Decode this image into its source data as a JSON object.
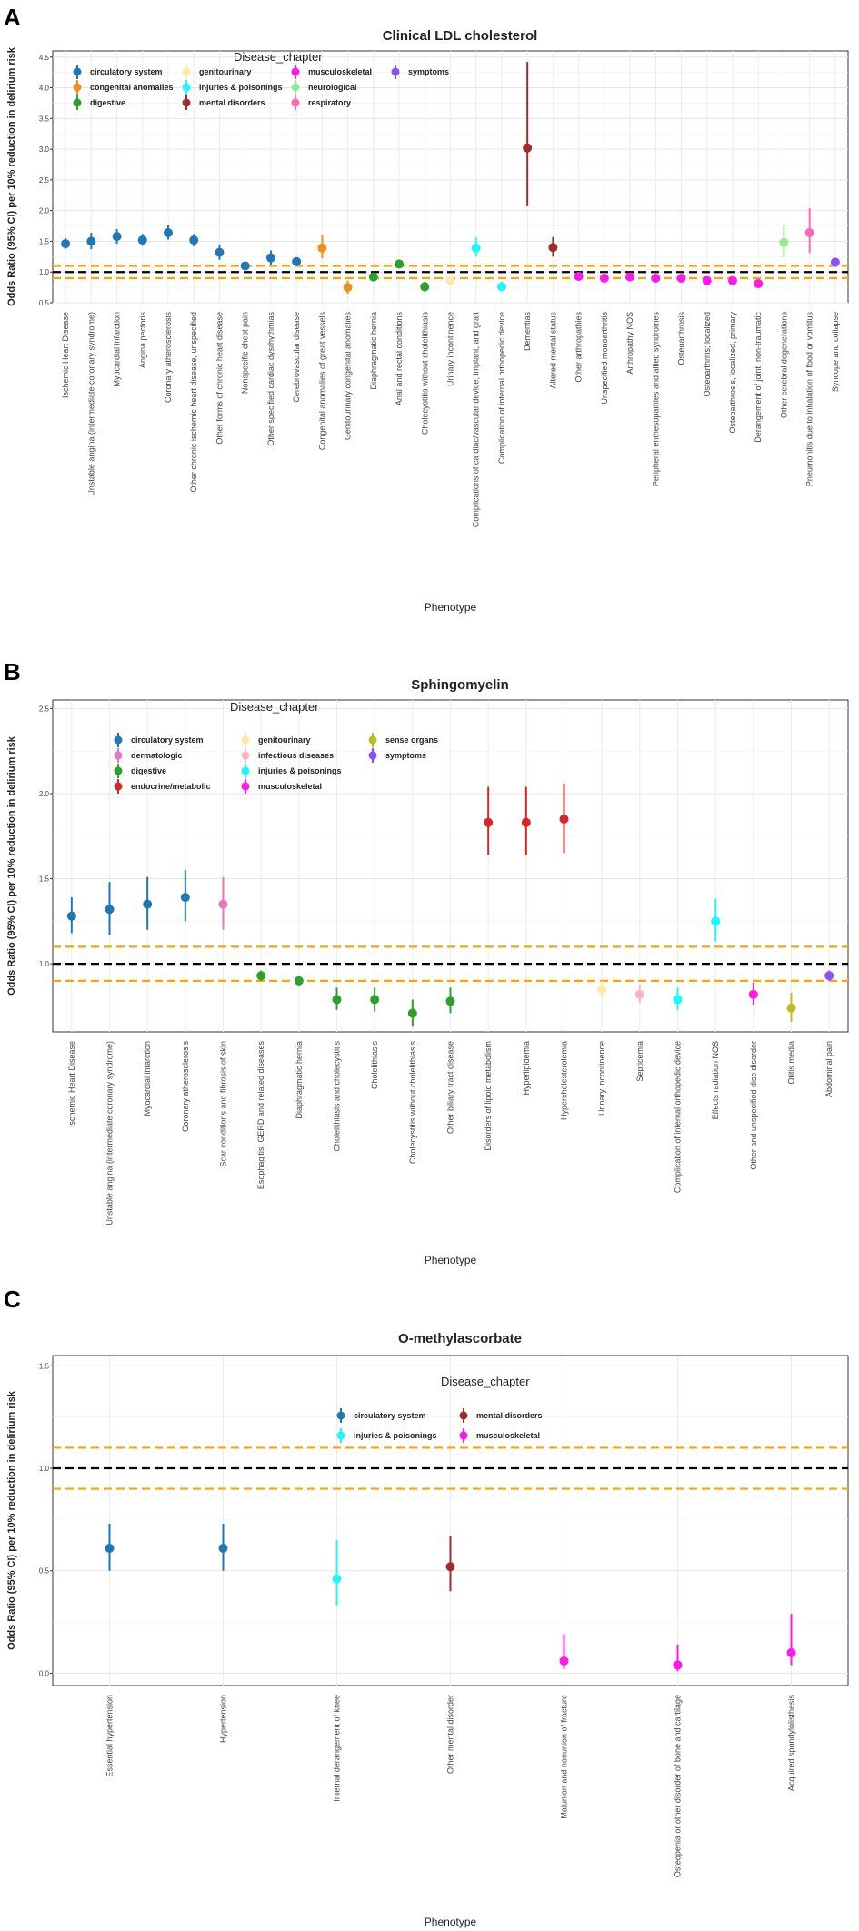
{
  "colors": {
    "circulatory system": "#1f77b4",
    "congenital anomalies": "#f28e1c",
    "digestive": "#2ca02c",
    "genitourinary": "#fdeaa8",
    "injuries & poisonings": "#1ff7ff",
    "mental disorders": "#a52a2a",
    "musculoskeletal": "#ff19e9",
    "neurological": "#90ee90",
    "respiratory": "#ff69b4",
    "symptoms": "#8a4fff",
    "dermatologic": "#e377c2",
    "endocrine/metabolic": "#d62728",
    "infectious diseases": "#ffb6c1",
    "sense organs": "#bcbd22",
    "reference_line": "#000000",
    "threshold_line": "#ffa500"
  },
  "chart_data": [
    {
      "panel_letter": "A",
      "type": "scatter",
      "title": "Clinical LDL cholesterol",
      "xlabel": "Phenotype",
      "ylabel": "Odds Ratio (95% CI) per 10% reduction in delirium risk",
      "ylim": [
        0.5,
        4.6
      ],
      "yticks": [
        0.5,
        1.0,
        1.5,
        2.0,
        2.5,
        3.0,
        3.5,
        4.0,
        4.5
      ],
      "ytick_labels": [
        "0.5",
        "1.0",
        "1.5",
        "2.0",
        "2.5",
        "3.0",
        "3.5",
        "4.0",
        "4.5"
      ],
      "ref_lines": [
        1.0
      ],
      "threshold_lines": [
        0.9,
        1.1
      ],
      "legend": {
        "title": "Disease_chapter",
        "placement": "top-left",
        "columns": [
          [
            "circulatory system",
            "congenital anomalies",
            "digestive"
          ],
          [
            "genitourinary",
            "injuries & poisonings",
            "mental disorders"
          ],
          [
            "musculoskeletal",
            "neurological",
            "respiratory"
          ],
          [
            "symptoms"
          ]
        ]
      },
      "points": [
        {
          "label": "Ischemic Heart Disease",
          "chapter": "circulatory system",
          "or": 1.46,
          "lo": 1.38,
          "hi": 1.55
        },
        {
          "label": "Unstable angina (intermediate coronary syndrome)",
          "chapter": "circulatory system",
          "or": 1.5,
          "lo": 1.37,
          "hi": 1.64
        },
        {
          "label": "Myocardial infarction",
          "chapter": "circulatory system",
          "or": 1.58,
          "lo": 1.46,
          "hi": 1.7
        },
        {
          "label": "Angina pectoris",
          "chapter": "circulatory system",
          "or": 1.52,
          "lo": 1.43,
          "hi": 1.62
        },
        {
          "label": "Coronary atherosclerosis",
          "chapter": "circulatory system",
          "or": 1.64,
          "lo": 1.53,
          "hi": 1.76
        },
        {
          "label": "Other chronic ischemic heart disease, unspecified",
          "chapter": "circulatory system",
          "or": 1.52,
          "lo": 1.42,
          "hi": 1.62
        },
        {
          "label": "Other forms of chronic heart disease",
          "chapter": "circulatory system",
          "or": 1.32,
          "lo": 1.2,
          "hi": 1.45
        },
        {
          "label": "Nonspecific chest pain",
          "chapter": "circulatory system",
          "or": 1.1,
          "lo": 1.05,
          "hi": 1.16
        },
        {
          "label": "Other specified cardiac dysrhythmias",
          "chapter": "circulatory system",
          "or": 1.23,
          "lo": 1.12,
          "hi": 1.35
        },
        {
          "label": "Cerebrovascular disease",
          "chapter": "circulatory system",
          "or": 1.17,
          "lo": 1.1,
          "hi": 1.24
        },
        {
          "label": "Congenital anomalies of great vessels",
          "chapter": "congenital anomalies",
          "or": 1.39,
          "lo": 1.22,
          "hi": 1.6
        },
        {
          "label": "Genitourinary congenital anomalies",
          "chapter": "congenital anomalies",
          "or": 0.75,
          "lo": 0.65,
          "hi": 0.86
        },
        {
          "label": "Diaphragmatic hernia",
          "chapter": "digestive",
          "or": 0.92,
          "lo": 0.88,
          "hi": 0.97
        },
        {
          "label": "Anal and rectal conditions",
          "chapter": "digestive",
          "or": 1.13,
          "lo": 1.08,
          "hi": 1.18
        },
        {
          "label": "Cholecystitis without cholelithiasis",
          "chapter": "digestive",
          "or": 0.76,
          "lo": 0.68,
          "hi": 0.84
        },
        {
          "label": "Urinary incontinence",
          "chapter": "genitourinary",
          "or": 0.86,
          "lo": 0.8,
          "hi": 0.93
        },
        {
          "label": "Complications of cardiac/vascular device, implant, and graft",
          "chapter": "injuries & poisonings",
          "or": 1.39,
          "lo": 1.25,
          "hi": 1.56
        },
        {
          "label": "Complication of internal orthopedic device",
          "chapter": "injuries & poisonings",
          "or": 0.76,
          "lo": 0.69,
          "hi": 0.84
        },
        {
          "label": "Dementias",
          "chapter": "mental disorders",
          "or": 3.02,
          "lo": 2.07,
          "hi": 4.42
        },
        {
          "label": "Altered mental status",
          "chapter": "mental disorders",
          "or": 1.4,
          "lo": 1.25,
          "hi": 1.57
        },
        {
          "label": "Other arthropathies",
          "chapter": "musculoskeletal",
          "or": 0.93,
          "lo": 0.89,
          "hi": 0.97
        },
        {
          "label": "Unspecified monoarthritis",
          "chapter": "musculoskeletal",
          "or": 0.9,
          "lo": 0.85,
          "hi": 0.95
        },
        {
          "label": "Arthropathy NOS",
          "chapter": "musculoskeletal",
          "or": 0.92,
          "lo": 0.88,
          "hi": 0.96
        },
        {
          "label": "Peripheral enthesopathies and allied syndromes",
          "chapter": "musculoskeletal",
          "or": 0.9,
          "lo": 0.86,
          "hi": 0.94
        },
        {
          "label": "Osteoarthrosis",
          "chapter": "musculoskeletal",
          "or": 0.9,
          "lo": 0.87,
          "hi": 0.94
        },
        {
          "label": "Osteoarthritis; localized",
          "chapter": "musculoskeletal",
          "or": 0.86,
          "lo": 0.82,
          "hi": 0.91
        },
        {
          "label": "Osteoarthrosis, localized, primary",
          "chapter": "musculoskeletal",
          "or": 0.86,
          "lo": 0.81,
          "hi": 0.91
        },
        {
          "label": "Derangement of joint, non-traumatic",
          "chapter": "musculoskeletal",
          "or": 0.81,
          "lo": 0.75,
          "hi": 0.88
        },
        {
          "label": "Other cerebral degenerations",
          "chapter": "neurological",
          "or": 1.48,
          "lo": 1.24,
          "hi": 1.77
        },
        {
          "label": "Pneumonitis due to inhalation of food or vomitus",
          "chapter": "respiratory",
          "or": 1.64,
          "lo": 1.31,
          "hi": 2.04
        },
        {
          "label": "Syncope and collapse",
          "chapter": "symptoms",
          "or": 1.16,
          "lo": 1.1,
          "hi": 1.21
        }
      ]
    },
    {
      "panel_letter": "B",
      "type": "scatter",
      "title": "Sphingomyelin",
      "xlabel": "Phenotype",
      "ylabel": "Odds Ratio (95% CI) per 10% reduction in delirium risk",
      "ylim": [
        0.6,
        2.55
      ],
      "yticks": [
        1.0,
        1.5,
        2.0,
        2.5
      ],
      "ytick_labels": [
        "1.0",
        "1.5",
        "2.0",
        "2.5"
      ],
      "ref_lines": [
        1.0
      ],
      "threshold_lines": [
        0.9,
        1.1
      ],
      "legend": {
        "title": "Disease_chapter",
        "placement": "top-left",
        "columns": [
          [
            "circulatory system",
            "dermatologic",
            "digestive",
            "endocrine/metabolic"
          ],
          [
            "genitourinary",
            "infectious diseases",
            "injuries & poisonings",
            "musculoskeletal"
          ],
          [
            "sense organs",
            "symptoms"
          ]
        ]
      },
      "points": [
        {
          "label": "Ischemic Heart Disease",
          "chapter": "circulatory system",
          "or": 1.28,
          "lo": 1.18,
          "hi": 1.39
        },
        {
          "label": "Unstable angina (intermediate coronary syndrome)",
          "chapter": "circulatory system",
          "or": 1.32,
          "lo": 1.17,
          "hi": 1.48
        },
        {
          "label": "Myocardial infarction",
          "chapter": "circulatory system",
          "or": 1.35,
          "lo": 1.2,
          "hi": 1.51
        },
        {
          "label": "Coronary atherosclerosis",
          "chapter": "circulatory system",
          "or": 1.39,
          "lo": 1.25,
          "hi": 1.55
        },
        {
          "label": "Scar conditions and fibrosis of skin",
          "chapter": "dermatologic",
          "or": 1.35,
          "lo": 1.2,
          "hi": 1.51
        },
        {
          "label": "Esophagitis, GERD and related diseases",
          "chapter": "digestive",
          "or": 0.93,
          "lo": 0.9,
          "hi": 0.96
        },
        {
          "label": "Diaphragmatic hernia",
          "chapter": "digestive",
          "or": 0.9,
          "lo": 0.87,
          "hi": 0.93
        },
        {
          "label": "Cholelithiasis and cholecystitis",
          "chapter": "digestive",
          "or": 0.79,
          "lo": 0.73,
          "hi": 0.86
        },
        {
          "label": "Cholelithiasis",
          "chapter": "digestive",
          "or": 0.79,
          "lo": 0.72,
          "hi": 0.86
        },
        {
          "label": "Cholecystitis without cholelithiasis",
          "chapter": "digestive",
          "or": 0.71,
          "lo": 0.63,
          "hi": 0.79
        },
        {
          "label": "Other biliary tract disease",
          "chapter": "digestive",
          "or": 0.78,
          "lo": 0.71,
          "hi": 0.86
        },
        {
          "label": "Disorders of lipoid metabolism",
          "chapter": "endocrine/metabolic",
          "or": 1.83,
          "lo": 1.64,
          "hi": 2.04
        },
        {
          "label": "Hyperlipidemia",
          "chapter": "endocrine/metabolic",
          "or": 1.83,
          "lo": 1.64,
          "hi": 2.04
        },
        {
          "label": "Hypercholesterolemia",
          "chapter": "endocrine/metabolic",
          "or": 1.85,
          "lo": 1.65,
          "hi": 2.06
        },
        {
          "label": "Urinary incontinence",
          "chapter": "genitourinary",
          "or": 0.85,
          "lo": 0.8,
          "hi": 0.9
        },
        {
          "label": "Septicemia",
          "chapter": "infectious diseases",
          "or": 0.82,
          "lo": 0.77,
          "hi": 0.88
        },
        {
          "label": "Complication of internal orthopedic device",
          "chapter": "injuries & poisonings",
          "or": 0.79,
          "lo": 0.73,
          "hi": 0.86
        },
        {
          "label": "Effects radiation NOS",
          "chapter": "injuries & poisonings",
          "or": 1.25,
          "lo": 1.13,
          "hi": 1.38
        },
        {
          "label": "Other and unspecified disc disorder",
          "chapter": "musculoskeletal",
          "or": 0.82,
          "lo": 0.76,
          "hi": 0.89
        },
        {
          "label": "Otitis media",
          "chapter": "sense organs",
          "or": 0.74,
          "lo": 0.66,
          "hi": 0.83
        },
        {
          "label": "Abdominal pain",
          "chapter": "symptoms",
          "or": 0.93,
          "lo": 0.9,
          "hi": 0.96
        }
      ]
    },
    {
      "panel_letter": "C",
      "type": "scatter",
      "title": "O-methylascorbate",
      "xlabel": "Phenotype",
      "ylabel": "Odds Ratio (95% CI) per 10% reduction in delirium risk",
      "ylim": [
        -0.06,
        1.55
      ],
      "yticks": [
        0.0,
        0.5,
        1.0,
        1.5
      ],
      "ytick_labels": [
        "0.0",
        "0.5",
        "1.0",
        "1.5"
      ],
      "ref_lines": [
        1.0
      ],
      "threshold_lines": [
        0.9,
        1.1
      ],
      "legend": {
        "title": "Disease_chapter",
        "placement": "top-center",
        "columns": [
          [
            "circulatory system",
            "injuries & poisonings"
          ],
          [
            "mental disorders",
            "musculoskeletal"
          ]
        ]
      },
      "points": [
        {
          "label": "Essential hypertension",
          "chapter": "circulatory system",
          "or": 0.61,
          "lo": 0.5,
          "hi": 0.73
        },
        {
          "label": "Hypertension",
          "chapter": "circulatory system",
          "or": 0.61,
          "lo": 0.5,
          "hi": 0.73
        },
        {
          "label": "Internal derangement of knee",
          "chapter": "injuries & poisonings",
          "or": 0.46,
          "lo": 0.33,
          "hi": 0.65
        },
        {
          "label": "Other mental disorder",
          "chapter": "mental disorders",
          "or": 0.52,
          "lo": 0.4,
          "hi": 0.67
        },
        {
          "label": "Malunion and nonunion of fracture",
          "chapter": "musculoskeletal",
          "or": 0.06,
          "lo": 0.02,
          "hi": 0.19
        },
        {
          "label": "Osteopenia or other disorder of bone and cartilage",
          "chapter": "musculoskeletal",
          "or": 0.04,
          "lo": 0.01,
          "hi": 0.14
        },
        {
          "label": "Acquired spondylolisthesis",
          "chapter": "musculoskeletal",
          "or": 0.1,
          "lo": 0.04,
          "hi": 0.29
        }
      ]
    }
  ]
}
